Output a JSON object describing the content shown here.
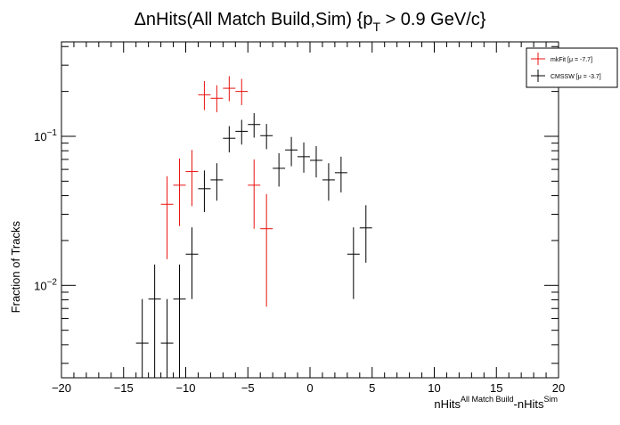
{
  "chart_data": {
    "type": "scatter",
    "title_parts": {
      "delta": "Δ",
      "main": "nHits(All Match Build,Sim) {p",
      "sub": "T",
      "tail": " > 0.9 GeV/c}"
    },
    "ylabel": "Fraction of Tracks",
    "xlabel_parts": {
      "a": "nHits",
      "a_sup": "All Match Build",
      "b": "-nHits",
      "b_sup": "Sim"
    },
    "xlim": [
      -20,
      20
    ],
    "ylim": [
      0.0024,
      0.43
    ],
    "yscale": "log",
    "x_ticks": [
      -20,
      -15,
      -10,
      -5,
      0,
      5,
      10,
      15,
      20
    ],
    "x_tick_labels": [
      "−20",
      "−15",
      "−10",
      "−5",
      "0",
      "5",
      "10",
      "15",
      "20"
    ],
    "y_tick_labels": [
      {
        "value": 0.1,
        "base": "10",
        "exp": "−1"
      },
      {
        "value": 0.01,
        "base": "10",
        "exp": "−2"
      }
    ],
    "grid": false,
    "legend_position": "top-right",
    "bin_halfwidth": 0.5,
    "series": [
      {
        "name": "mkFit",
        "legend_text": "mkFit  [μ = -7.7]",
        "color": "#e8120f",
        "points": [
          {
            "x": -11.5,
            "y": 0.035,
            "lo": 0.015,
            "hi": 0.054
          },
          {
            "x": -10.5,
            "y": 0.047,
            "lo": 0.025,
            "hi": 0.071
          },
          {
            "x": -9.5,
            "y": 0.058,
            "lo": 0.034,
            "hi": 0.081
          },
          {
            "x": -8.5,
            "y": 0.19,
            "lo": 0.15,
            "hi": 0.235
          },
          {
            "x": -7.5,
            "y": 0.18,
            "lo": 0.145,
            "hi": 0.22
          },
          {
            "x": -6.5,
            "y": 0.21,
            "lo": 0.172,
            "hi": 0.253
          },
          {
            "x": -5.5,
            "y": 0.2,
            "lo": 0.162,
            "hi": 0.243
          },
          {
            "x": -4.5,
            "y": 0.047,
            "lo": 0.024,
            "hi": 0.07
          },
          {
            "x": -3.5,
            "y": 0.024,
            "lo": 0.0072,
            "hi": 0.041
          }
        ]
      },
      {
        "name": "CMSSW",
        "legend_text": "CMSSW  [μ = -3.7]",
        "color": "#000000",
        "points": [
          {
            "x": -13.5,
            "y": 0.0041,
            "lo": 0.0024,
            "hi": 0.0081
          },
          {
            "x": -12.5,
            "y": 0.0081,
            "lo": 0.0024,
            "hi": 0.0138
          },
          {
            "x": -11.5,
            "y": 0.0041,
            "lo": 0.0024,
            "hi": 0.0081
          },
          {
            "x": -10.5,
            "y": 0.0081,
            "lo": 0.0024,
            "hi": 0.0138
          },
          {
            "x": -9.5,
            "y": 0.0162,
            "lo": 0.0081,
            "hi": 0.0245
          },
          {
            "x": -8.5,
            "y": 0.0445,
            "lo": 0.031,
            "hi": 0.059
          },
          {
            "x": -7.5,
            "y": 0.051,
            "lo": 0.037,
            "hi": 0.066
          },
          {
            "x": -6.5,
            "y": 0.097,
            "lo": 0.078,
            "hi": 0.117
          },
          {
            "x": -5.5,
            "y": 0.108,
            "lo": 0.088,
            "hi": 0.129
          },
          {
            "x": -4.5,
            "y": 0.12,
            "lo": 0.098,
            "hi": 0.143
          },
          {
            "x": -3.5,
            "y": 0.101,
            "lo": 0.082,
            "hi": 0.121
          },
          {
            "x": -2.5,
            "y": 0.061,
            "lo": 0.046,
            "hi": 0.077
          },
          {
            "x": -1.5,
            "y": 0.081,
            "lo": 0.063,
            "hi": 0.099
          },
          {
            "x": -0.5,
            "y": 0.073,
            "lo": 0.057,
            "hi": 0.091
          },
          {
            "x": 0.5,
            "y": 0.069,
            "lo": 0.053,
            "hi": 0.086
          },
          {
            "x": 1.5,
            "y": 0.051,
            "lo": 0.037,
            "hi": 0.066
          },
          {
            "x": 2.5,
            "y": 0.057,
            "lo": 0.042,
            "hi": 0.073
          },
          {
            "x": 3.5,
            "y": 0.0162,
            "lo": 0.0081,
            "hi": 0.0245
          },
          {
            "x": 4.5,
            "y": 0.0243,
            "lo": 0.0142,
            "hi": 0.0345
          }
        ]
      }
    ]
  }
}
